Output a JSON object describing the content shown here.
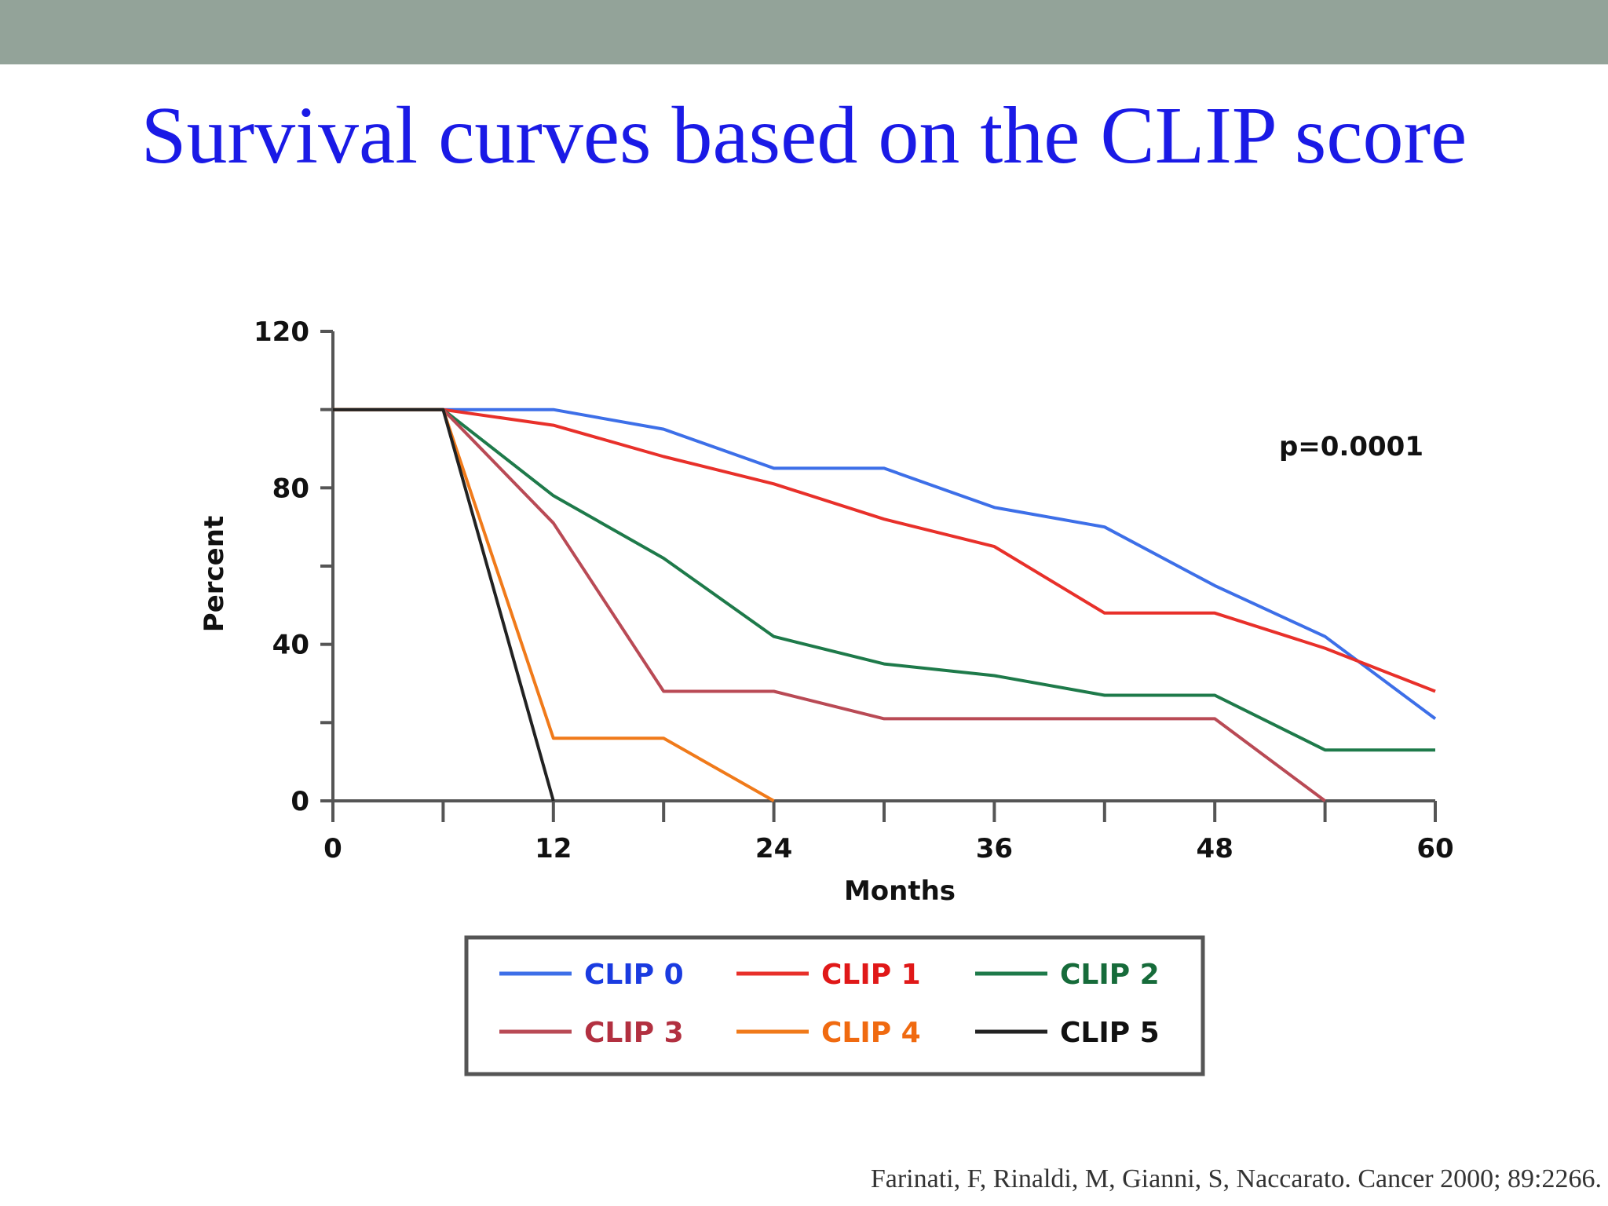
{
  "slide": {
    "title": "Survival curves based on the CLIP score",
    "citation": "Farinati, F, Rinaldi, M, Gianni, S, Naccarato. Cancer 2000; 89:2266.",
    "colors": {
      "top_bar": "#93a399",
      "title": "#1a1ae6"
    }
  },
  "chart_data": {
    "type": "line",
    "title": "",
    "xlabel": "Months",
    "ylabel": "Percent",
    "xlim": [
      0,
      60
    ],
    "ylim": [
      0,
      120
    ],
    "x_ticks": [
      0,
      12,
      24,
      36,
      48,
      60
    ],
    "x_minor_ticks": [
      6,
      18,
      30,
      42,
      54
    ],
    "y_ticks": [
      0,
      40,
      80,
      120
    ],
    "y_minor_ticks": [
      20,
      60,
      100
    ],
    "grid": false,
    "legend_position": "bottom",
    "annotation": "p=0.0001",
    "series": [
      {
        "name": "CLIP 0",
        "color": "#3d6fe8",
        "label_color": "#1a3be0",
        "points": [
          [
            0,
            100
          ],
          [
            6,
            100
          ],
          [
            12,
            100
          ],
          [
            18,
            95
          ],
          [
            24,
            85
          ],
          [
            30,
            85
          ],
          [
            36,
            75
          ],
          [
            42,
            70
          ],
          [
            48,
            55
          ],
          [
            54,
            42
          ],
          [
            60,
            21
          ]
        ]
      },
      {
        "name": "CLIP 1",
        "color": "#e8302a",
        "label_color": "#e01818",
        "points": [
          [
            0,
            100
          ],
          [
            6,
            100
          ],
          [
            12,
            96
          ],
          [
            18,
            88
          ],
          [
            24,
            81
          ],
          [
            30,
            72
          ],
          [
            36,
            65
          ],
          [
            42,
            48
          ],
          [
            48,
            48
          ],
          [
            54,
            39
          ],
          [
            60,
            28
          ]
        ]
      },
      {
        "name": "CLIP 2",
        "color": "#1e7a4a",
        "label_color": "#166b3a",
        "points": [
          [
            0,
            100
          ],
          [
            6,
            100
          ],
          [
            12,
            78
          ],
          [
            18,
            62
          ],
          [
            24,
            42
          ],
          [
            30,
            35
          ],
          [
            36,
            32
          ],
          [
            42,
            27
          ],
          [
            48,
            27
          ],
          [
            54,
            13
          ],
          [
            60,
            13
          ]
        ]
      },
      {
        "name": "CLIP 3",
        "color": "#b94a55",
        "label_color": "#b23040",
        "points": [
          [
            0,
            100
          ],
          [
            6,
            100
          ],
          [
            12,
            71
          ],
          [
            18,
            28
          ],
          [
            24,
            28
          ],
          [
            30,
            21
          ],
          [
            36,
            21
          ],
          [
            42,
            21
          ],
          [
            48,
            21
          ],
          [
            54,
            0
          ]
        ]
      },
      {
        "name": "CLIP 4",
        "color": "#f07a1a",
        "label_color": "#f06a10",
        "points": [
          [
            0,
            100
          ],
          [
            6,
            100
          ],
          [
            12,
            16
          ],
          [
            18,
            16
          ],
          [
            24,
            0
          ]
        ]
      },
      {
        "name": "CLIP 5",
        "color": "#222222",
        "label_color": "#111111",
        "points": [
          [
            0,
            100
          ],
          [
            6,
            100
          ],
          [
            12,
            0
          ]
        ]
      }
    ]
  }
}
